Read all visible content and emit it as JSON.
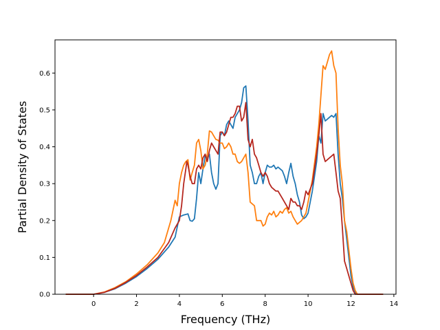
{
  "chart_data": {
    "type": "line",
    "xlabel": "Frequency (THz)",
    "ylabel": "Partial Density of States",
    "xlim": [
      -1.8,
      14.1
    ],
    "ylim": [
      0,
      0.69
    ],
    "x_ticks": [
      0,
      2,
      4,
      6,
      8,
      10,
      12,
      14
    ],
    "y_ticks": [
      0.0,
      0.1,
      0.2,
      0.3,
      0.4,
      0.5,
      0.6
    ],
    "x_tick_labels": [
      "0",
      "2",
      "4",
      "6",
      "8",
      "10",
      "12",
      "14"
    ],
    "y_tick_labels": [
      "0.0",
      "0.1",
      "0.2",
      "0.3",
      "0.4",
      "0.5",
      "0.6"
    ],
    "grid": false,
    "legend": "none",
    "series": [
      {
        "color": "#1f77b4",
        "points": [
          [
            -1.3,
            0
          ],
          [
            0,
            0
          ],
          [
            0.5,
            0.005
          ],
          [
            1,
            0.015
          ],
          [
            1.5,
            0.03
          ],
          [
            2,
            0.048
          ],
          [
            2.5,
            0.07
          ],
          [
            3,
            0.095
          ],
          [
            3.5,
            0.128
          ],
          [
            3.8,
            0.155
          ],
          [
            4,
            0.21
          ],
          [
            4.2,
            0.215
          ],
          [
            4.4,
            0.218
          ],
          [
            4.5,
            0.2
          ],
          [
            4.6,
            0.198
          ],
          [
            4.7,
            0.205
          ],
          [
            4.8,
            0.26
          ],
          [
            4.9,
            0.33
          ],
          [
            5.0,
            0.3
          ],
          [
            5.1,
            0.34
          ],
          [
            5.2,
            0.375
          ],
          [
            5.3,
            0.37
          ],
          [
            5.4,
            0.38
          ],
          [
            5.5,
            0.33
          ],
          [
            5.6,
            0.3
          ],
          [
            5.7,
            0.285
          ],
          [
            5.8,
            0.3
          ],
          [
            5.9,
            0.43
          ],
          [
            6.0,
            0.44
          ],
          [
            6.1,
            0.43
          ],
          [
            6.2,
            0.46
          ],
          [
            6.3,
            0.47
          ],
          [
            6.4,
            0.46
          ],
          [
            6.5,
            0.45
          ],
          [
            6.6,
            0.48
          ],
          [
            6.7,
            0.49
          ],
          [
            6.8,
            0.5
          ],
          [
            6.9,
            0.52
          ],
          [
            7.0,
            0.56
          ],
          [
            7.1,
            0.565
          ],
          [
            7.2,
            0.47
          ],
          [
            7.3,
            0.35
          ],
          [
            7.4,
            0.33
          ],
          [
            7.5,
            0.3
          ],
          [
            7.6,
            0.3
          ],
          [
            7.7,
            0.32
          ],
          [
            7.8,
            0.33
          ],
          [
            7.9,
            0.3
          ],
          [
            8.0,
            0.33
          ],
          [
            8.1,
            0.35
          ],
          [
            8.2,
            0.345
          ],
          [
            8.3,
            0.345
          ],
          [
            8.4,
            0.35
          ],
          [
            8.5,
            0.34
          ],
          [
            8.6,
            0.345
          ],
          [
            8.7,
            0.34
          ],
          [
            8.8,
            0.335
          ],
          [
            8.9,
            0.32
          ],
          [
            9.0,
            0.3
          ],
          [
            9.1,
            0.33
          ],
          [
            9.2,
            0.355
          ],
          [
            9.3,
            0.32
          ],
          [
            9.4,
            0.3
          ],
          [
            9.5,
            0.27
          ],
          [
            9.6,
            0.25
          ],
          [
            9.7,
            0.215
          ],
          [
            9.8,
            0.205
          ],
          [
            9.9,
            0.21
          ],
          [
            10.0,
            0.22
          ],
          [
            10.2,
            0.28
          ],
          [
            10.4,
            0.36
          ],
          [
            10.5,
            0.43
          ],
          [
            10.6,
            0.41
          ],
          [
            10.7,
            0.49
          ],
          [
            10.8,
            0.47
          ],
          [
            10.9,
            0.475
          ],
          [
            11.0,
            0.48
          ],
          [
            11.1,
            0.485
          ],
          [
            11.2,
            0.48
          ],
          [
            11.3,
            0.49
          ],
          [
            11.4,
            0.38
          ],
          [
            11.5,
            0.3
          ],
          [
            11.6,
            0.26
          ],
          [
            11.7,
            0.2
          ],
          [
            11.8,
            0.15
          ],
          [
            11.9,
            0.1
          ],
          [
            12.0,
            0.05
          ],
          [
            12.1,
            0.02
          ],
          [
            12.2,
            0.005
          ],
          [
            12.3,
            0
          ],
          [
            13.5,
            0
          ]
        ]
      },
      {
        "color": "#ff7f0e",
        "points": [
          [
            -1.3,
            0
          ],
          [
            0,
            0
          ],
          [
            0.5,
            0.006
          ],
          [
            1,
            0.018
          ],
          [
            1.5,
            0.034
          ],
          [
            2,
            0.055
          ],
          [
            2.5,
            0.08
          ],
          [
            3,
            0.112
          ],
          [
            3.3,
            0.14
          ],
          [
            3.6,
            0.2
          ],
          [
            3.8,
            0.255
          ],
          [
            3.9,
            0.24
          ],
          [
            4.0,
            0.3
          ],
          [
            4.1,
            0.33
          ],
          [
            4.2,
            0.35
          ],
          [
            4.3,
            0.36
          ],
          [
            4.4,
            0.365
          ],
          [
            4.5,
            0.31
          ],
          [
            4.6,
            0.33
          ],
          [
            4.7,
            0.35
          ],
          [
            4.8,
            0.41
          ],
          [
            4.9,
            0.42
          ],
          [
            5.0,
            0.39
          ],
          [
            5.1,
            0.34
          ],
          [
            5.2,
            0.35
          ],
          [
            5.3,
            0.38
          ],
          [
            5.4,
            0.443
          ],
          [
            5.5,
            0.44
          ],
          [
            5.6,
            0.43
          ],
          [
            5.7,
            0.42
          ],
          [
            5.8,
            0.418
          ],
          [
            5.9,
            0.41
          ],
          [
            6.0,
            0.41
          ],
          [
            6.1,
            0.395
          ],
          [
            6.2,
            0.4
          ],
          [
            6.3,
            0.41
          ],
          [
            6.4,
            0.4
          ],
          [
            6.5,
            0.38
          ],
          [
            6.6,
            0.38
          ],
          [
            6.7,
            0.36
          ],
          [
            6.8,
            0.355
          ],
          [
            6.9,
            0.36
          ],
          [
            7.0,
            0.37
          ],
          [
            7.1,
            0.38
          ],
          [
            7.2,
            0.33
          ],
          [
            7.3,
            0.25
          ],
          [
            7.5,
            0.24
          ],
          [
            7.6,
            0.2
          ],
          [
            7.7,
            0.2
          ],
          [
            7.8,
            0.2
          ],
          [
            7.9,
            0.185
          ],
          [
            8.0,
            0.19
          ],
          [
            8.1,
            0.21
          ],
          [
            8.2,
            0.22
          ],
          [
            8.3,
            0.215
          ],
          [
            8.4,
            0.225
          ],
          [
            8.5,
            0.21
          ],
          [
            8.6,
            0.215
          ],
          [
            8.7,
            0.225
          ],
          [
            8.8,
            0.22
          ],
          [
            8.9,
            0.23
          ],
          [
            9.0,
            0.235
          ],
          [
            9.1,
            0.22
          ],
          [
            9.2,
            0.225
          ],
          [
            9.3,
            0.21
          ],
          [
            9.4,
            0.2
          ],
          [
            9.5,
            0.19
          ],
          [
            9.6,
            0.195
          ],
          [
            9.7,
            0.2
          ],
          [
            9.8,
            0.21
          ],
          [
            9.9,
            0.22
          ],
          [
            10.0,
            0.25
          ],
          [
            10.2,
            0.31
          ],
          [
            10.4,
            0.4
          ],
          [
            10.5,
            0.46
          ],
          [
            10.6,
            0.54
          ],
          [
            10.7,
            0.62
          ],
          [
            10.8,
            0.61
          ],
          [
            10.9,
            0.63
          ],
          [
            11.0,
            0.65
          ],
          [
            11.1,
            0.66
          ],
          [
            11.2,
            0.62
          ],
          [
            11.3,
            0.6
          ],
          [
            11.4,
            0.45
          ],
          [
            11.5,
            0.35
          ],
          [
            11.6,
            0.3
          ],
          [
            11.7,
            0.2
          ],
          [
            11.8,
            0.17
          ],
          [
            11.9,
            0.12
          ],
          [
            12.0,
            0.07
          ],
          [
            12.1,
            0.03
          ],
          [
            12.2,
            0.01
          ],
          [
            12.3,
            0
          ],
          [
            13.5,
            0
          ]
        ]
      },
      {
        "color": "#b5261e",
        "points": [
          [
            -1.3,
            0
          ],
          [
            0,
            0
          ],
          [
            0.5,
            0.005
          ],
          [
            1,
            0.016
          ],
          [
            1.5,
            0.032
          ],
          [
            2,
            0.051
          ],
          [
            2.5,
            0.074
          ],
          [
            3,
            0.1
          ],
          [
            3.5,
            0.14
          ],
          [
            3.8,
            0.18
          ],
          [
            4.0,
            0.2
          ],
          [
            4.1,
            0.24
          ],
          [
            4.2,
            0.3
          ],
          [
            4.3,
            0.34
          ],
          [
            4.35,
            0.36
          ],
          [
            4.4,
            0.35
          ],
          [
            4.5,
            0.32
          ],
          [
            4.6,
            0.3
          ],
          [
            4.7,
            0.3
          ],
          [
            4.8,
            0.34
          ],
          [
            4.9,
            0.35
          ],
          [
            5.0,
            0.34
          ],
          [
            5.1,
            0.37
          ],
          [
            5.2,
            0.38
          ],
          [
            5.3,
            0.36
          ],
          [
            5.4,
            0.39
          ],
          [
            5.5,
            0.41
          ],
          [
            5.6,
            0.4
          ],
          [
            5.7,
            0.39
          ],
          [
            5.8,
            0.38
          ],
          [
            5.9,
            0.44
          ],
          [
            6.0,
            0.44
          ],
          [
            6.1,
            0.43
          ],
          [
            6.2,
            0.44
          ],
          [
            6.3,
            0.46
          ],
          [
            6.4,
            0.48
          ],
          [
            6.5,
            0.48
          ],
          [
            6.6,
            0.49
          ],
          [
            6.7,
            0.51
          ],
          [
            6.8,
            0.51
          ],
          [
            6.9,
            0.47
          ],
          [
            7.0,
            0.48
          ],
          [
            7.1,
            0.52
          ],
          [
            7.2,
            0.42
          ],
          [
            7.3,
            0.4
          ],
          [
            7.4,
            0.42
          ],
          [
            7.5,
            0.38
          ],
          [
            7.6,
            0.37
          ],
          [
            7.7,
            0.35
          ],
          [
            7.8,
            0.33
          ],
          [
            7.9,
            0.32
          ],
          [
            8.0,
            0.33
          ],
          [
            8.1,
            0.32
          ],
          [
            8.2,
            0.3
          ],
          [
            8.3,
            0.29
          ],
          [
            8.4,
            0.285
          ],
          [
            8.5,
            0.28
          ],
          [
            8.6,
            0.28
          ],
          [
            8.7,
            0.27
          ],
          [
            8.8,
            0.26
          ],
          [
            8.9,
            0.25
          ],
          [
            9.0,
            0.24
          ],
          [
            9.1,
            0.23
          ],
          [
            9.2,
            0.26
          ],
          [
            9.3,
            0.25
          ],
          [
            9.4,
            0.25
          ],
          [
            9.5,
            0.24
          ],
          [
            9.6,
            0.24
          ],
          [
            9.7,
            0.23
          ],
          [
            9.8,
            0.25
          ],
          [
            9.9,
            0.28
          ],
          [
            10.0,
            0.27
          ],
          [
            10.2,
            0.3
          ],
          [
            10.4,
            0.38
          ],
          [
            10.5,
            0.43
          ],
          [
            10.6,
            0.49
          ],
          [
            10.7,
            0.38
          ],
          [
            10.8,
            0.36
          ],
          [
            10.9,
            0.365
          ],
          [
            11.0,
            0.37
          ],
          [
            11.1,
            0.375
          ],
          [
            11.2,
            0.38
          ],
          [
            11.3,
            0.33
          ],
          [
            11.4,
            0.28
          ],
          [
            11.5,
            0.26
          ],
          [
            11.6,
            0.18
          ],
          [
            11.7,
            0.09
          ],
          [
            11.8,
            0.07
          ],
          [
            11.9,
            0.05
          ],
          [
            12.0,
            0.03
          ],
          [
            12.1,
            0.01
          ],
          [
            12.2,
            0
          ],
          [
            13.5,
            0
          ]
        ]
      }
    ]
  }
}
